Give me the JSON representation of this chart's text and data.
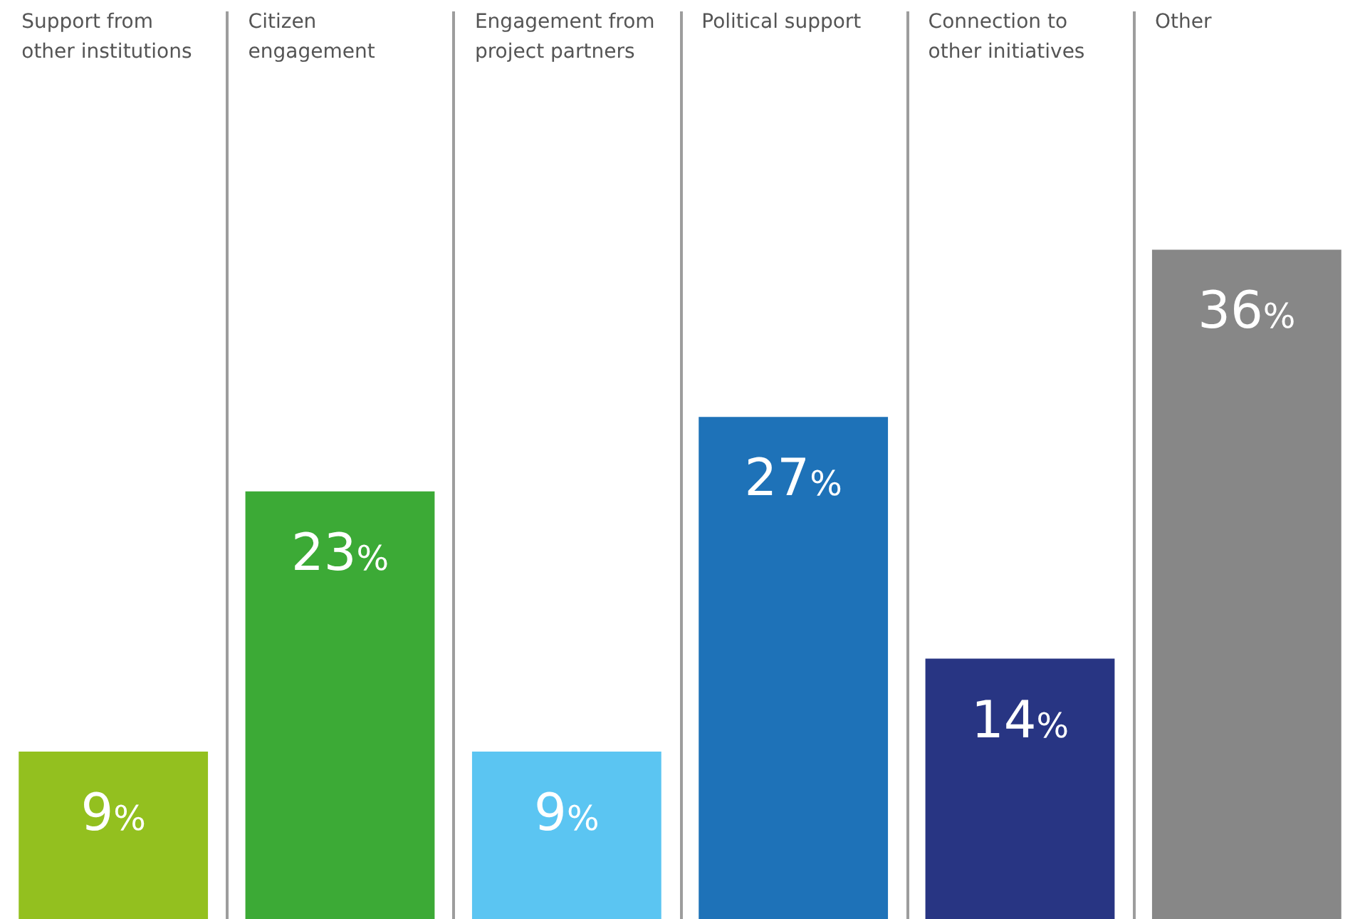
{
  "chart_data": {
    "type": "bar",
    "categories": [
      "Support from other institutions",
      "Citizen engagement",
      "Engagement from project partners",
      "Political support",
      "Connection to other initiatives",
      "Other"
    ],
    "values": [
      9,
      23,
      9,
      27,
      14,
      36
    ],
    "colors": [
      "#93c01f",
      "#3caa36",
      "#5bc5f2",
      "#1e72b8",
      "#283583",
      "#878787"
    ],
    "value_labels": [
      "9%",
      "23%",
      "9%",
      "27%",
      "14%",
      "36%"
    ],
    "grid": "x",
    "legend": false
  }
}
